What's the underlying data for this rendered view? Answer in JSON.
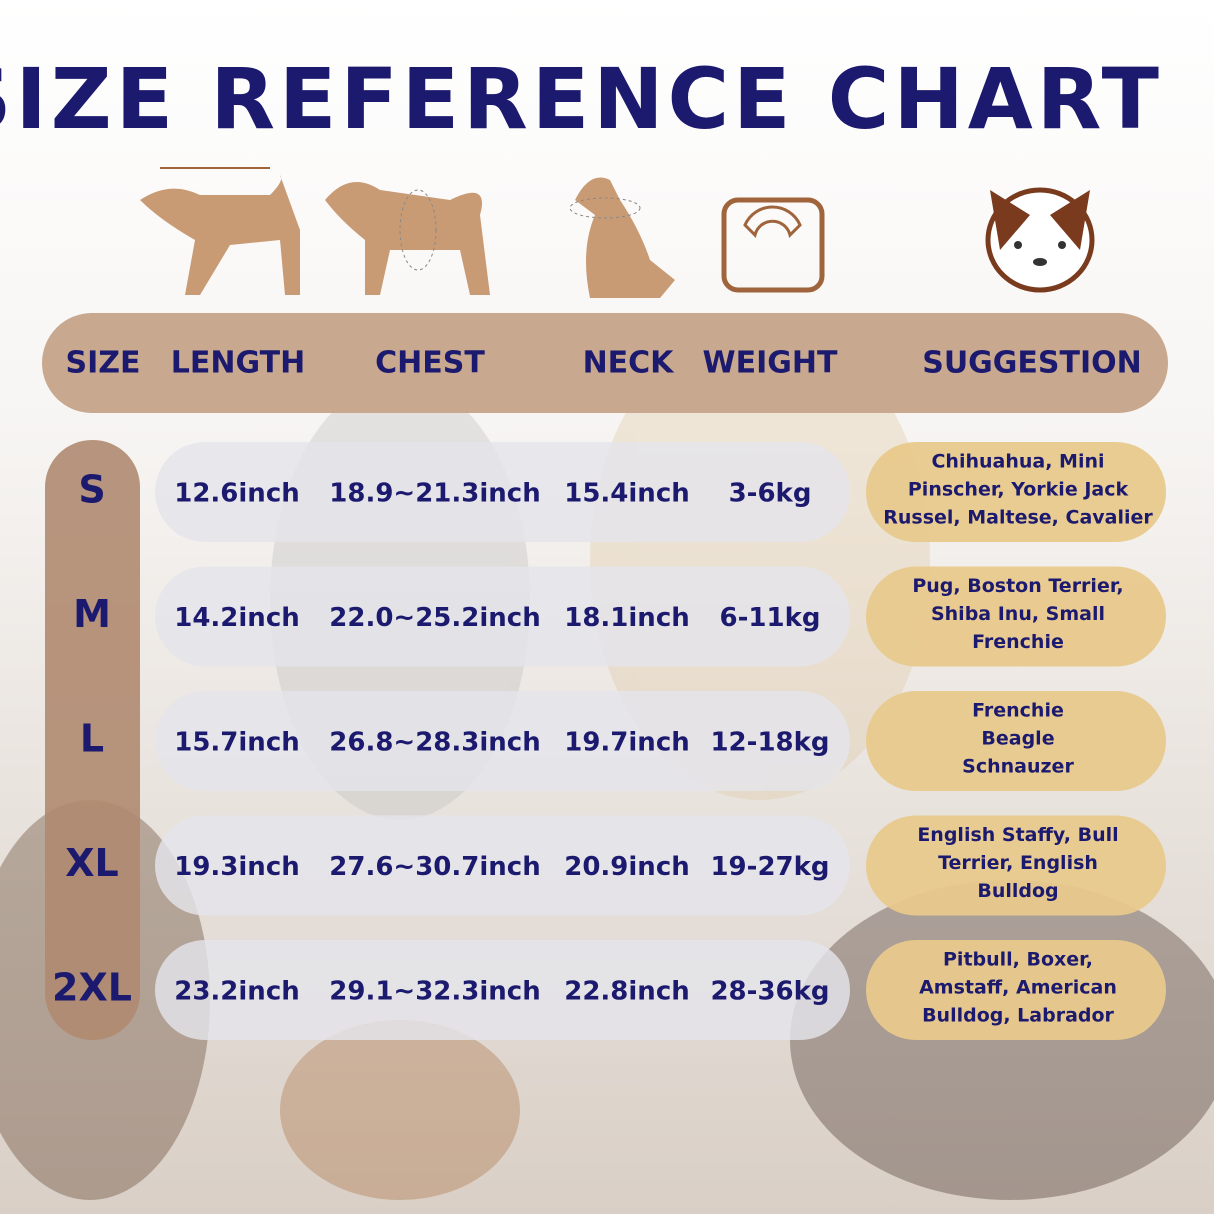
{
  "header": {
    "title": "SIZE REFERENCE CHART"
  },
  "table": {
    "columns": [
      "SIZE",
      "LENGTH",
      "CHEST",
      "NECK",
      "WEIGHT",
      "SUGGESTION"
    ],
    "rows": [
      {
        "size": "S",
        "length": "12.6inch",
        "chest": "18.9~21.3inch",
        "neck": "15.4inch",
        "weight": "3-6kg",
        "suggestion": [
          "Chihuahua, Mini",
          "Pinscher, Yorkie Jack",
          "Russel, Maltese, Cavalier"
        ]
      },
      {
        "size": "M",
        "length": "14.2inch",
        "chest": "22.0~25.2inch",
        "neck": "18.1inch",
        "weight": "6-11kg",
        "suggestion": [
          "Pug, Boston Terrier,",
          "Shiba Inu, Small",
          "Frenchie"
        ]
      },
      {
        "size": "L",
        "length": "15.7inch",
        "chest": "26.8~28.3inch",
        "neck": "19.7inch",
        "weight": "12-18kg",
        "suggestion": [
          "Frenchie",
          "Beagle",
          "Schnauzer"
        ]
      },
      {
        "size": "XL",
        "length": "19.3inch",
        "chest": "27.6~30.7inch",
        "neck": "20.9inch",
        "weight": "19-27kg",
        "suggestion": [
          "English Staffy, Bull",
          "Terrier, English",
          "Bulldog"
        ]
      },
      {
        "size": "2XL",
        "length": "23.2inch",
        "chest": "29.1~32.3inch",
        "neck": "22.8inch",
        "weight": "28-36kg",
        "suggestion": [
          "Pitbull, Boxer,",
          "Amstaff, American",
          "Bulldog, Labrador"
        ]
      }
    ]
  }
}
